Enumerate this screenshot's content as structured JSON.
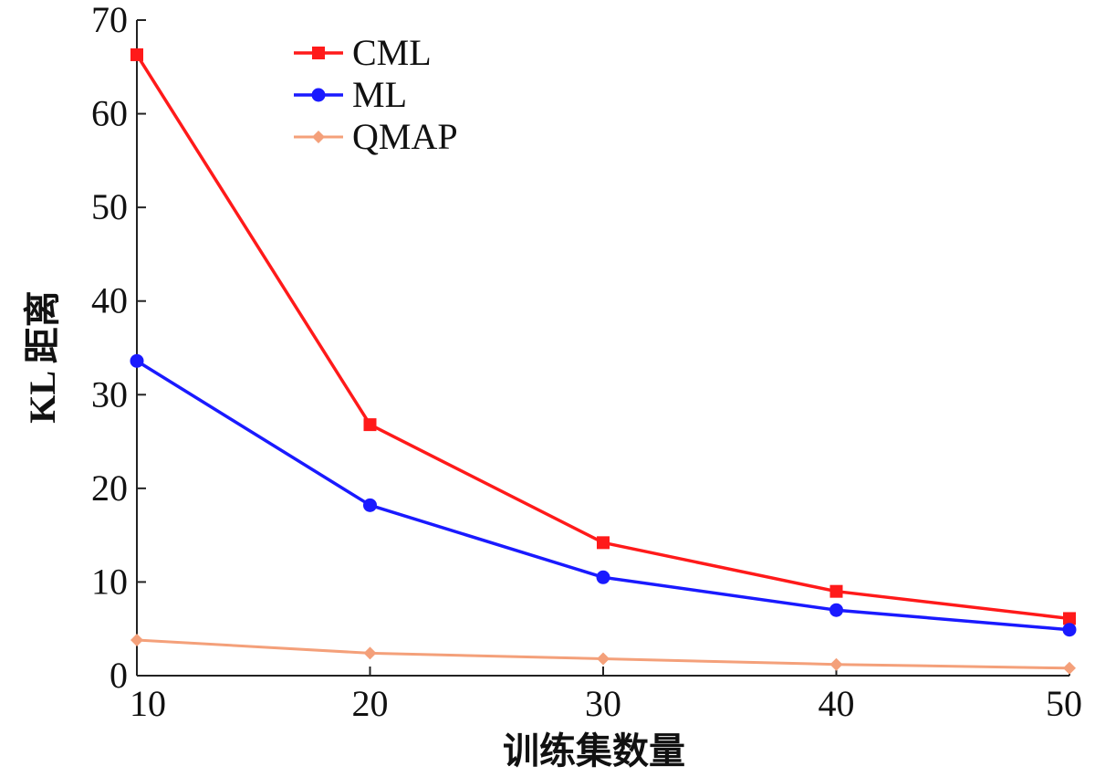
{
  "chart_data": {
    "type": "line",
    "title": "",
    "xlabel": "训练集数量",
    "ylabel": "KL 距离",
    "x": [
      10,
      20,
      30,
      40,
      50
    ],
    "xlim": [
      10,
      50
    ],
    "ylim": [
      0,
      70
    ],
    "xticks": [
      "10",
      "20",
      "30",
      "40",
      "50"
    ],
    "yticks": [
      "0",
      "10",
      "20",
      "30",
      "40",
      "50",
      "60",
      "70"
    ],
    "grid": false,
    "legend_position": "top-left",
    "series": [
      {
        "name": "CML",
        "color": "#ff1a1a",
        "marker": "square",
        "values": [
          66.3,
          26.8,
          14.2,
          9.0,
          6.1
        ]
      },
      {
        "name": "ML",
        "color": "#1a1aff",
        "marker": "circle",
        "values": [
          33.6,
          18.2,
          10.5,
          7.0,
          4.9
        ]
      },
      {
        "name": "QMAP",
        "color": "#f4a07a",
        "marker": "diamond",
        "values": [
          3.8,
          2.4,
          1.8,
          1.2,
          0.8
        ]
      }
    ]
  }
}
